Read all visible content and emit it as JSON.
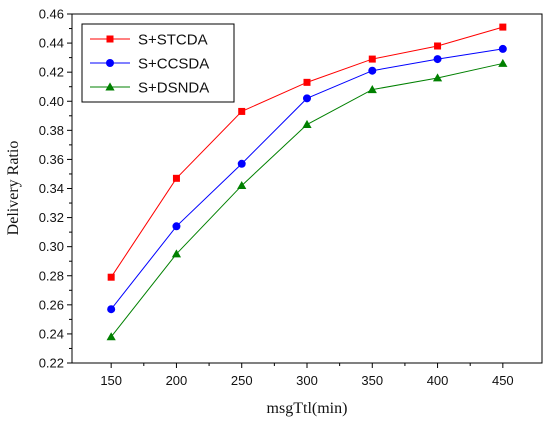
{
  "chart_data": {
    "type": "line",
    "xlabel": "msgTtl(min)",
    "ylabel": "Delivery Ratio",
    "x": [
      150,
      200,
      250,
      300,
      350,
      400,
      450
    ],
    "x_ticks": [
      "150",
      "200",
      "250",
      "300",
      "350",
      "400",
      "450"
    ],
    "y_ticks": [
      "0.22",
      "0.24",
      "0.26",
      "0.28",
      "0.30",
      "0.32",
      "0.34",
      "0.36",
      "0.38",
      "0.40",
      "0.42",
      "0.44",
      "0.46"
    ],
    "xlim": [
      120,
      480
    ],
    "ylim": [
      0.22,
      0.46
    ],
    "grid": false,
    "legend_position": "top-left",
    "series": [
      {
        "name": "S+STCDA",
        "color": "#ff0000",
        "marker": "square",
        "values": [
          0.279,
          0.347,
          0.393,
          0.413,
          0.429,
          0.438,
          0.451
        ]
      },
      {
        "name": "S+CCSDA",
        "color": "#0000ff",
        "marker": "circle",
        "values": [
          0.257,
          0.314,
          0.357,
          0.402,
          0.421,
          0.429,
          0.436
        ]
      },
      {
        "name": "S+DSNDA",
        "color": "#008000",
        "marker": "triangle",
        "values": [
          0.238,
          0.295,
          0.342,
          0.384,
          0.408,
          0.416,
          0.426
        ]
      }
    ]
  }
}
